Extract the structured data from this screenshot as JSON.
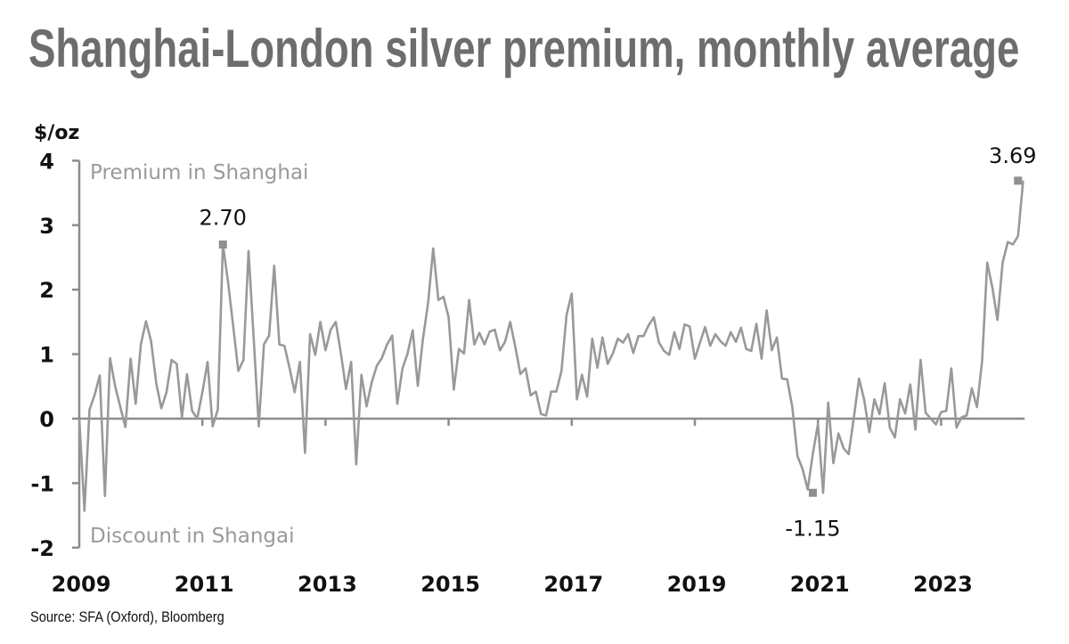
{
  "title": "Shanghai-London silver premium, monthly average",
  "source": "Source: SFA (Oxford), Bloomberg",
  "chart_data": {
    "type": "line",
    "title": "Shanghai-London silver premium, monthly average",
    "ylabel": "$/oz",
    "xlabel": "",
    "ylim": [
      -2,
      4
    ],
    "xlim": [
      2009,
      2024.85
    ],
    "yticks": [
      4,
      3,
      2,
      1,
      0,
      -1,
      -2
    ],
    "xticks": [
      "2009",
      "2011",
      "2013",
      "2015",
      "2017",
      "2019",
      "2021",
      "2023"
    ],
    "xtick_years": [
      2009,
      2011,
      2013,
      2015,
      2017,
      2019,
      2021,
      2023
    ],
    "grid": false,
    "region_labels": {
      "top": "Premium in Shanghai",
      "bottom": "Discount in Shangai"
    },
    "annotations": [
      {
        "label": "2.70",
        "value": 2.7,
        "date": "2011-05"
      },
      {
        "label": "-1.15",
        "value": -1.15,
        "date": "2020-12"
      },
      {
        "label": "3.69",
        "value": 3.69,
        "date": "2024-04"
      }
    ],
    "series": [
      {
        "name": "Shanghai-London silver premium",
        "color": "#999999",
        "start": "2009-01",
        "frequency": "monthly",
        "values": [
          0.0,
          -1.43,
          0.14,
          0.37,
          0.67,
          -1.2,
          0.94,
          0.5,
          0.18,
          -0.13,
          0.93,
          0.23,
          1.15,
          1.51,
          1.2,
          0.55,
          0.16,
          0.41,
          0.91,
          0.85,
          0.02,
          0.69,
          0.12,
          0.0,
          0.41,
          0.88,
          -0.12,
          0.14,
          2.7,
          2.12,
          1.43,
          0.74,
          0.91,
          2.6,
          1.24,
          -0.12,
          1.15,
          1.29,
          2.37,
          1.15,
          1.13,
          0.78,
          0.41,
          0.88,
          -0.53,
          1.31,
          0.99,
          1.5,
          1.06,
          1.38,
          1.5,
          1.01,
          0.46,
          0.88,
          -0.71,
          0.68,
          0.19,
          0.56,
          0.82,
          0.94,
          1.15,
          1.29,
          0.23,
          0.78,
          1.01,
          1.37,
          0.51,
          1.24,
          1.8,
          2.64,
          1.84,
          1.89,
          1.57,
          0.45,
          1.08,
          1.01,
          1.84,
          1.15,
          1.33,
          1.15,
          1.35,
          1.38,
          1.06,
          1.19,
          1.5,
          1.11,
          0.69,
          0.78,
          0.36,
          0.42,
          0.07,
          0.05,
          0.42,
          0.42,
          0.74,
          1.61,
          1.94,
          0.3,
          0.68,
          0.34,
          1.24,
          0.79,
          1.26,
          0.85,
          1.01,
          1.24,
          1.18,
          1.31,
          1.02,
          1.28,
          1.28,
          1.45,
          1.57,
          1.18,
          1.05,
          0.99,
          1.34,
          1.08,
          1.46,
          1.43,
          0.93,
          1.18,
          1.42,
          1.13,
          1.31,
          1.2,
          1.13,
          1.34,
          1.19,
          1.41,
          1.08,
          1.05,
          1.47,
          0.93,
          1.68,
          1.06,
          1.26,
          0.62,
          0.61,
          0.18,
          -0.58,
          -0.78,
          -1.1,
          -0.55,
          -0.08,
          -1.15,
          0.25,
          -0.69,
          -0.23,
          -0.46,
          -0.55,
          0.02,
          0.62,
          0.3,
          -0.21,
          0.3,
          0.07,
          0.55,
          -0.14,
          -0.29,
          0.3,
          0.08,
          0.53,
          -0.17,
          0.91,
          0.09,
          0.0,
          -0.09,
          0.1,
          0.12,
          0.78,
          -0.14,
          0.02,
          0.05,
          0.47,
          0.18,
          0.9,
          2.42,
          2.03,
          1.53,
          2.42,
          2.74,
          2.7,
          2.83,
          3.69
        ]
      }
    ]
  }
}
